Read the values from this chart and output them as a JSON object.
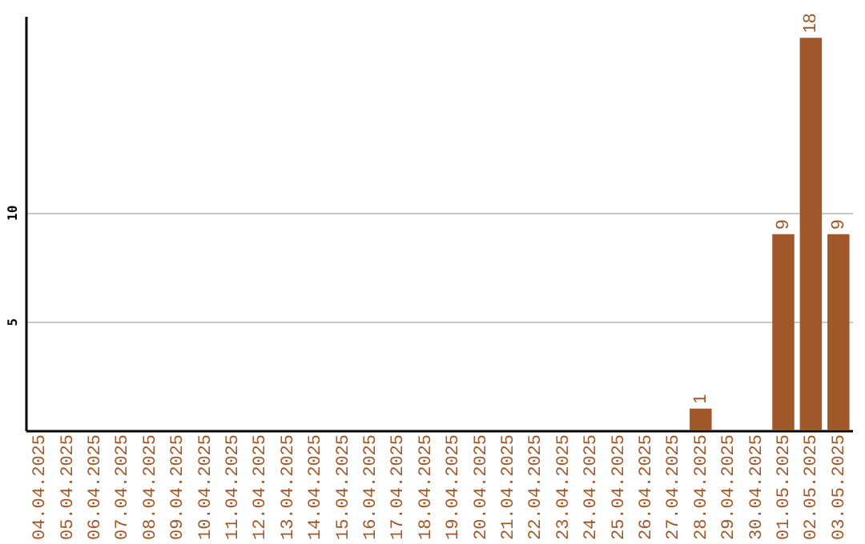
{
  "chart_data": {
    "type": "bar",
    "categories": [
      "04.04.2025",
      "05.04.2025",
      "06.04.2025",
      "07.04.2025",
      "08.04.2025",
      "09.04.2025",
      "10.04.2025",
      "11.04.2025",
      "12.04.2025",
      "13.04.2025",
      "14.04.2025",
      "15.04.2025",
      "16.04.2025",
      "17.04.2025",
      "18.04.2025",
      "19.04.2025",
      "20.04.2025",
      "21.04.2025",
      "22.04.2025",
      "23.04.2025",
      "24.04.2025",
      "25.04.2025",
      "26.04.2025",
      "27.04.2025",
      "28.04.2025",
      "29.04.2025",
      "30.04.2025",
      "01.05.2025",
      "02.05.2025",
      "03.05.2025"
    ],
    "values": [
      0,
      0,
      0,
      0,
      0,
      0,
      0,
      0,
      0,
      0,
      0,
      0,
      0,
      0,
      0,
      0,
      0,
      0,
      0,
      0,
      0,
      0,
      0,
      0,
      1,
      0,
      0,
      9,
      18,
      9
    ],
    "value_labels": [
      null,
      null,
      null,
      null,
      null,
      null,
      null,
      null,
      null,
      null,
      null,
      null,
      null,
      null,
      null,
      null,
      null,
      null,
      null,
      null,
      null,
      null,
      null,
      null,
      "1",
      null,
      null,
      "9",
      "18",
      "9"
    ],
    "color": "#a0582a",
    "ylim": [
      0,
      19
    ],
    "yticks": [
      5,
      10
    ],
    "grid": "y"
  }
}
